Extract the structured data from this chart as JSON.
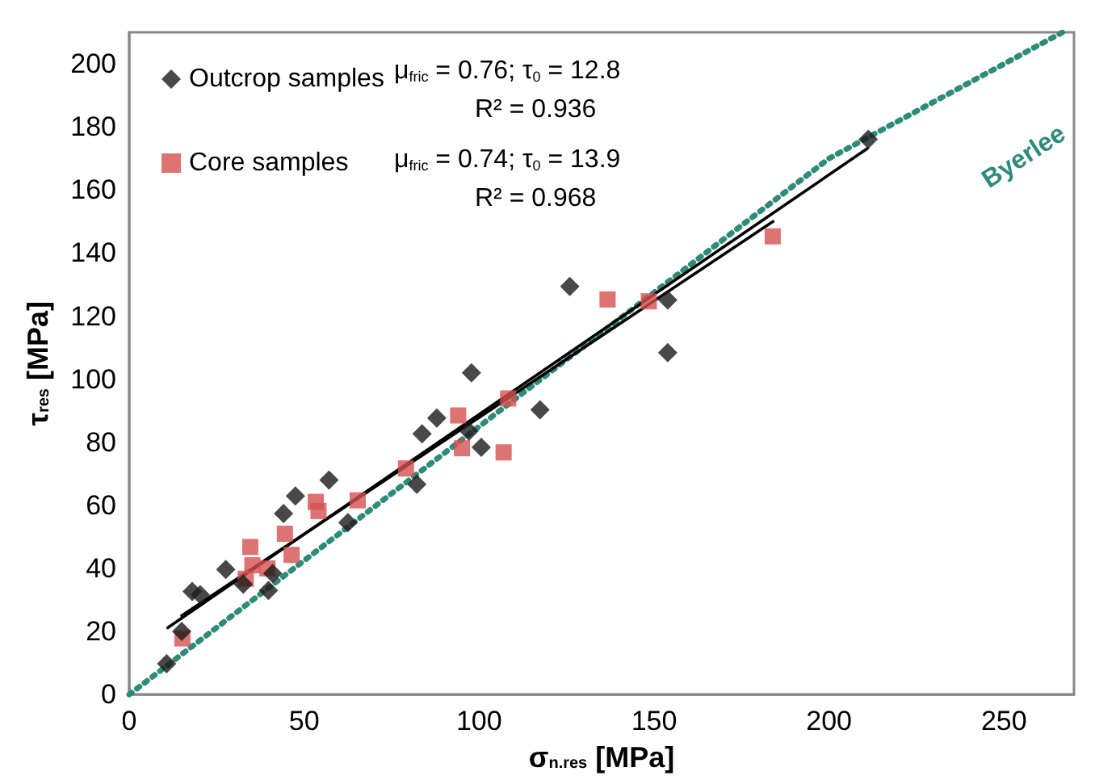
{
  "chart_data": {
    "type": "scatter",
    "xlabel": "σ$_{n.res}$ [MPa]",
    "ylabel": "τ$_{res}$ [MPa]",
    "xlim": [
      0,
      270
    ],
    "ylim": [
      0,
      210
    ],
    "xticks": [
      0,
      50,
      100,
      150,
      200,
      250
    ],
    "yticks": [
      0,
      20,
      40,
      60,
      80,
      100,
      120,
      140,
      160,
      180,
      200
    ],
    "grid": false,
    "legend": "top left",
    "annotations": [
      "μ$_{fric}$ = 0.76; τ$_{0}$ = 12.8",
      "R² = 0.936",
      "μ$_{fric}$ = 0.74; τ$_{0}$ = 13.9",
      "R² = 0.968"
    ],
    "series": [
      {
        "name": "Byerlee",
        "type": "line",
        "color": "#2e8b7a",
        "line_style": "dotted",
        "marker": "none",
        "x": [
          0,
          200,
          266.7
        ],
        "values": [
          0,
          170,
          210
        ]
      },
      {
        "type": "line",
        "color": "#000000",
        "line_style": "solid",
        "marker": "none",
        "x": [
          11,
          211
        ],
        "values": [
          21.2,
          173.2
        ]
      },
      {
        "type": "line",
        "color": "#000000",
        "line_style": "solid",
        "marker": "none",
        "x": [
          15,
          184
        ],
        "values": [
          25,
          150
        ]
      },
      {
        "name": "Core samples",
        "color": "#d65050",
        "marker": "square",
        "x": [
          15.2,
          34.6,
          35.2,
          33.3,
          39.5,
          44.5,
          46.4,
          53.3,
          54.1,
          65.3,
          79.1,
          94,
          95.1,
          107,
          108.3,
          136.7,
          148.5,
          183.9
        ],
        "values": [
          17.8,
          46.8,
          41,
          36.7,
          40,
          51,
          44.3,
          61.1,
          58.2,
          61.6,
          71.7,
          88.5,
          78.1,
          76.8,
          93.9,
          125.3,
          124.7,
          145.3
        ]
      },
      {
        "name": "Outcrop samples",
        "color": "#1a1a1a",
        "marker": "diamond",
        "x": [
          10.7,
          15,
          18,
          20.3,
          27.6,
          32.6,
          39.8,
          41,
          44.1,
          47.5,
          57.1,
          62.5,
          82.2,
          83.7,
          87.9,
          97.1,
          97.8,
          100.6,
          117.4,
          125.9,
          153.9,
          153.9,
          211.2
        ],
        "values": [
          9.8,
          20,
          32.7,
          31.7,
          39.7,
          35,
          33,
          38.4,
          57.4,
          63,
          68,
          54.5,
          66.7,
          82.7,
          87.7,
          83.5,
          102,
          78.4,
          90.3,
          129.4,
          125.1,
          108.4,
          176.1
        ]
      }
    ]
  }
}
